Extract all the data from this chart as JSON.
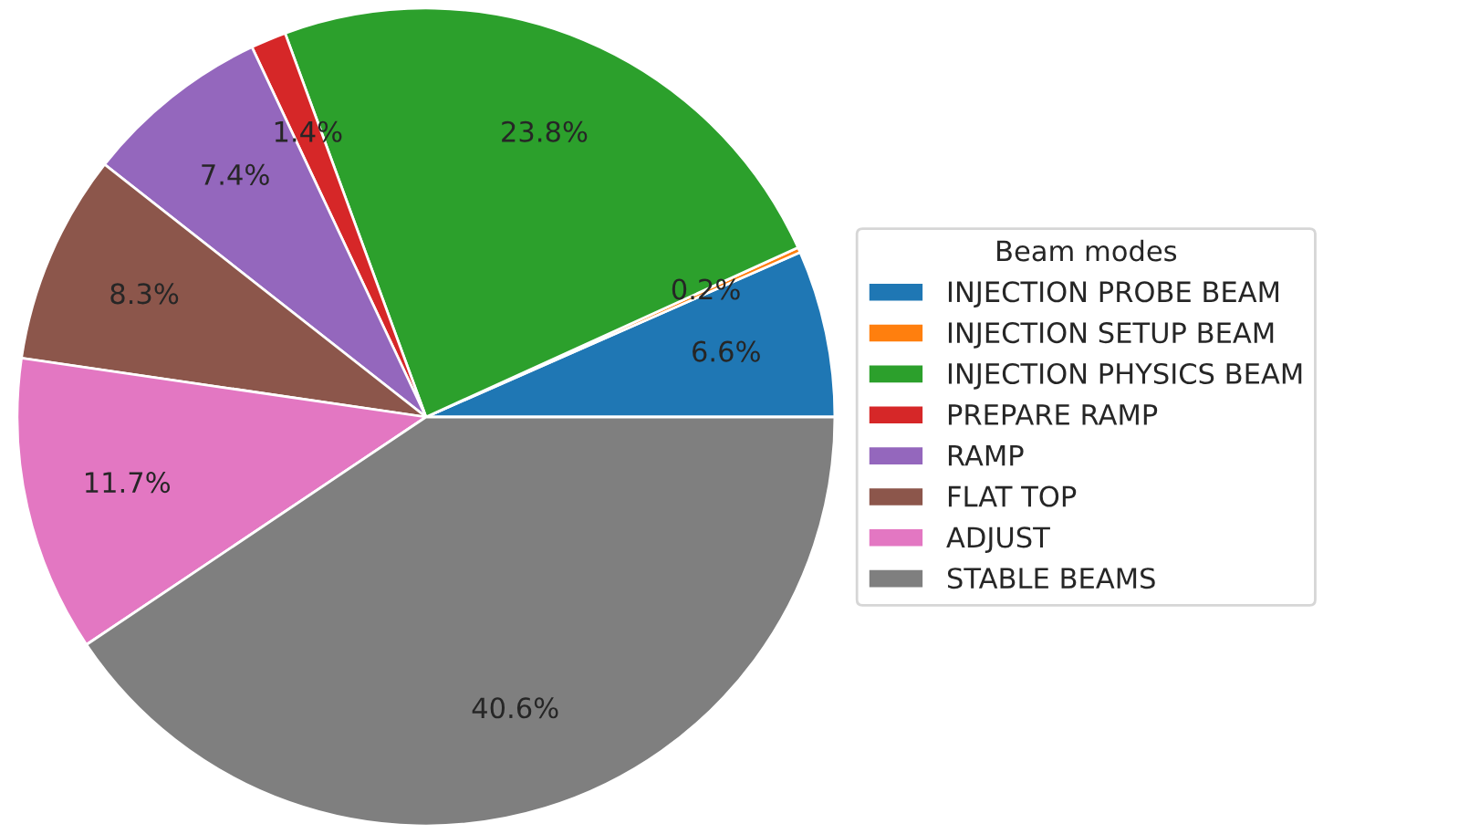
{
  "chart_data": {
    "type": "pie",
    "legend_title": "Beam modes",
    "categories": [
      "INJECTION PROBE BEAM",
      "INJECTION SETUP BEAM",
      "INJECTION PHYSICS BEAM",
      "PREPARE RAMP",
      "RAMP",
      "FLAT TOP",
      "ADJUST",
      "STABLE BEAMS"
    ],
    "values": [
      6.6,
      0.2,
      23.8,
      1.4,
      7.4,
      8.3,
      11.7,
      40.6
    ],
    "value_labels": [
      "6.6%",
      "0.2%",
      "23.8%",
      "1.4%",
      "7.4%",
      "8.3%",
      "11.7%",
      "40.6%"
    ],
    "colors": [
      "#1f77b4",
      "#ff7f0e",
      "#2ca02c",
      "#d62728",
      "#9467bd",
      "#8c564b",
      "#e377c2",
      "#7f7f7f"
    ],
    "legend": "right"
  }
}
